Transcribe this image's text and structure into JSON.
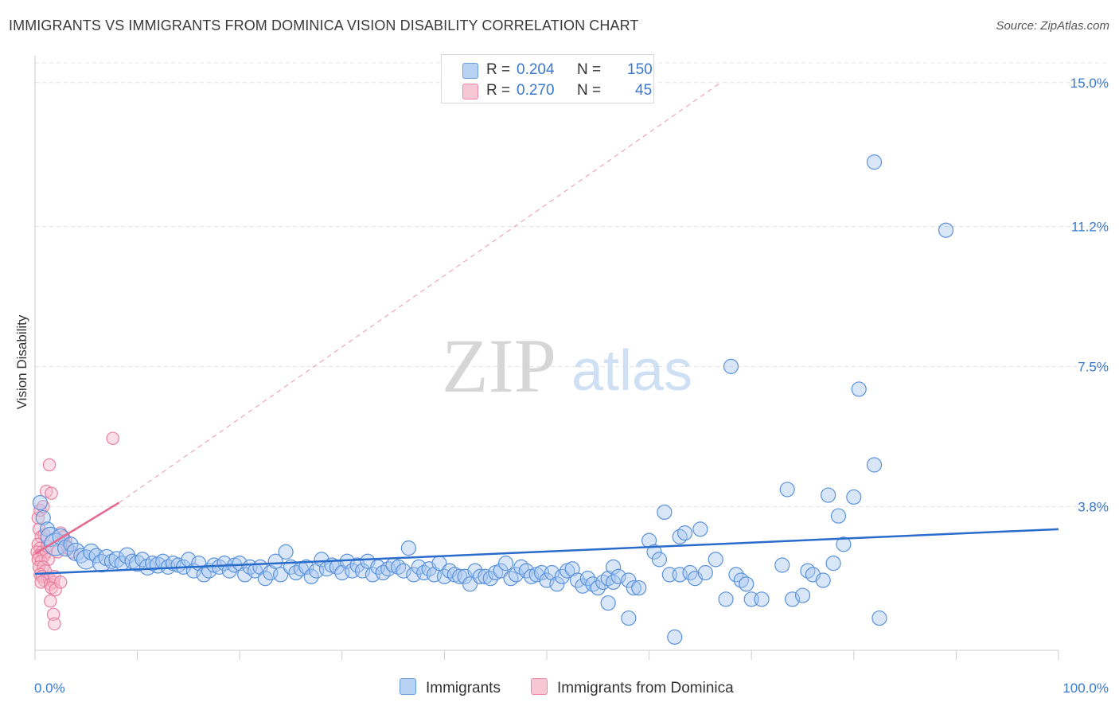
{
  "title": "IMMIGRANTS VS IMMIGRANTS FROM DOMINICA VISION DISABILITY CORRELATION CHART",
  "source": "Source: ZipAtlas.com",
  "watermark": {
    "zip": "ZIP",
    "atlas": "atlas"
  },
  "legend": {
    "r_label": "R =",
    "n_label": "N =",
    "rows": [
      {
        "name": "Immigrants",
        "r": "0.204",
        "n": "150",
        "fill": "#b7d2f3",
        "stroke": "#6a9fe0"
      },
      {
        "name": "Immigrants from Dominica",
        "r": "0.270",
        "n": "45",
        "fill": "#f8c7d5",
        "stroke": "#ea8aa8"
      }
    ]
  },
  "colors": {
    "blue_fill": "#a9c8ef",
    "blue_stroke": "#5a92dc",
    "blue_line": "#2a6ccc",
    "pink_fill": "#f6b9cc",
    "pink_stroke": "#e8809f",
    "pink_line": "#e46a8f",
    "grid": "#e3e3e3",
    "tick_text": "#3a78d0"
  },
  "chart_data": {
    "type": "scatter",
    "title": "IMMIGRANTS VS IMMIGRANTS FROM DOMINICA VISION DISABILITY CORRELATION CHART",
    "xlabel": "",
    "ylabel": "Vision Disability",
    "xlim": [
      0,
      100
    ],
    "ylim": [
      0,
      15.5
    ],
    "x_tick_labels": [
      "0.0%",
      "100.0%"
    ],
    "y_ticks": [
      3.8,
      7.5,
      11.2,
      15.0
    ],
    "y_tick_labels": [
      "3.8%",
      "7.5%",
      "11.2%",
      "15.0%"
    ],
    "grid": true,
    "series": [
      {
        "name": "Immigrants",
        "r": 0.204,
        "n": 150,
        "trend": {
          "x": [
            0,
            100
          ],
          "y": [
            2.02,
            3.2
          ],
          "style": "solid"
        },
        "points": [
          [
            0.5,
            3.9,
            9
          ],
          [
            0.8,
            3.5,
            9
          ],
          [
            1.2,
            3.2,
            9
          ],
          [
            1.5,
            3.0,
            12
          ],
          [
            2,
            2.8,
            14
          ],
          [
            2.5,
            3.0,
            10
          ],
          [
            3,
            2.7,
            10
          ],
          [
            3.5,
            2.8,
            9
          ],
          [
            4,
            2.6,
            11
          ],
          [
            4.5,
            2.5,
            9
          ],
          [
            5,
            2.4,
            12
          ],
          [
            5.5,
            2.6,
            10
          ],
          [
            6,
            2.5,
            9
          ],
          [
            6.5,
            2.3,
            11
          ],
          [
            7,
            2.45,
            10
          ],
          [
            7.5,
            2.35,
            9
          ],
          [
            8,
            2.4,
            10
          ],
          [
            8.5,
            2.3,
            9
          ],
          [
            9,
            2.5,
            10
          ],
          [
            9.5,
            2.35,
            9
          ],
          [
            10,
            2.3,
            10
          ],
          [
            10.5,
            2.4,
            9
          ],
          [
            11,
            2.2,
            10
          ],
          [
            11.5,
            2.3,
            9
          ],
          [
            12,
            2.25,
            10
          ],
          [
            12.5,
            2.35,
            9
          ],
          [
            13,
            2.2,
            9
          ],
          [
            13.5,
            2.3,
            9
          ],
          [
            14,
            2.25,
            9
          ],
          [
            14.5,
            2.2,
            9
          ],
          [
            15,
            2.4,
            9
          ],
          [
            15.5,
            2.1,
            9
          ],
          [
            16,
            2.3,
            9
          ],
          [
            16.5,
            2.0,
            9
          ],
          [
            17,
            2.1,
            9
          ],
          [
            17.5,
            2.25,
            9
          ],
          [
            18,
            2.2,
            9
          ],
          [
            18.5,
            2.3,
            9
          ],
          [
            19,
            2.1,
            9
          ],
          [
            19.5,
            2.25,
            9
          ],
          [
            20,
            2.3,
            9
          ],
          [
            20.5,
            2.0,
            9
          ],
          [
            21,
            2.2,
            9
          ],
          [
            21.5,
            2.1,
            9
          ],
          [
            22,
            2.2,
            9
          ],
          [
            22.5,
            1.9,
            9
          ],
          [
            23,
            2.05,
            9
          ],
          [
            23.5,
            2.35,
            9
          ],
          [
            24,
            2.0,
            9
          ],
          [
            24.5,
            2.6,
            9
          ],
          [
            25,
            2.2,
            9
          ],
          [
            25.5,
            2.05,
            9
          ],
          [
            26,
            2.15,
            9
          ],
          [
            26.5,
            2.2,
            9
          ],
          [
            27,
            1.95,
            9
          ],
          [
            27.5,
            2.1,
            9
          ],
          [
            28,
            2.4,
            9
          ],
          [
            28.5,
            2.15,
            9
          ],
          [
            29,
            2.25,
            9
          ],
          [
            29.5,
            2.2,
            9
          ],
          [
            30,
            2.05,
            9
          ],
          [
            30.5,
            2.35,
            9
          ],
          [
            31,
            2.1,
            9
          ],
          [
            31.5,
            2.25,
            9
          ],
          [
            32,
            2.1,
            9
          ],
          [
            32.5,
            2.35,
            9
          ],
          [
            33,
            2.0,
            9
          ],
          [
            33.5,
            2.2,
            9
          ],
          [
            34,
            2.05,
            9
          ],
          [
            34.5,
            2.15,
            9
          ],
          [
            35,
            2.25,
            9
          ],
          [
            35.5,
            2.2,
            9
          ],
          [
            36,
            2.1,
            9
          ],
          [
            36.5,
            2.7,
            9
          ],
          [
            37,
            2.0,
            9
          ],
          [
            37.5,
            2.2,
            9
          ],
          [
            38,
            2.05,
            9
          ],
          [
            38.5,
            2.15,
            9
          ],
          [
            39,
            2.0,
            9
          ],
          [
            39.5,
            2.3,
            9
          ],
          [
            40,
            1.95,
            9
          ],
          [
            40.5,
            2.1,
            9
          ],
          [
            41,
            2.0,
            9
          ],
          [
            41.5,
            1.95,
            9
          ],
          [
            42,
            1.95,
            9
          ],
          [
            42.5,
            1.75,
            9
          ],
          [
            43,
            2.1,
            9
          ],
          [
            43.5,
            1.95,
            9
          ],
          [
            44,
            1.95,
            9
          ],
          [
            44.5,
            1.9,
            9
          ],
          [
            45,
            2.05,
            9
          ],
          [
            45.5,
            2.1,
            9
          ],
          [
            46,
            2.3,
            9
          ],
          [
            46.5,
            1.9,
            9
          ],
          [
            47,
            2.0,
            9
          ],
          [
            47.5,
            2.2,
            9
          ],
          [
            48,
            2.1,
            9
          ],
          [
            48.5,
            1.95,
            9
          ],
          [
            49,
            2.0,
            9
          ],
          [
            49.5,
            2.05,
            9
          ],
          [
            50,
            1.85,
            9
          ],
          [
            50.5,
            2.05,
            9
          ],
          [
            51,
            1.75,
            9
          ],
          [
            51.5,
            1.95,
            9
          ],
          [
            52,
            2.1,
            9
          ],
          [
            52.5,
            2.15,
            9
          ],
          [
            53,
            1.85,
            9
          ],
          [
            53.5,
            1.7,
            9
          ],
          [
            54,
            1.9,
            9
          ],
          [
            54.5,
            1.75,
            9
          ],
          [
            55,
            1.65,
            9
          ],
          [
            55.5,
            1.8,
            9
          ],
          [
            56,
            1.9,
            9
          ],
          [
            56.5,
            1.8,
            9
          ],
          [
            56,
            1.25,
            9
          ],
          [
            56.5,
            2.2,
            9
          ],
          [
            57,
            1.95,
            9
          ],
          [
            58,
            1.85,
            9
          ],
          [
            58.5,
            1.65,
            9
          ],
          [
            59,
            1.65,
            9
          ],
          [
            58,
            0.85,
            9
          ],
          [
            60,
            2.9,
            9
          ],
          [
            60.5,
            2.6,
            9
          ],
          [
            61,
            2.4,
            9
          ],
          [
            61.5,
            3.65,
            9
          ],
          [
            63,
            3.0,
            9
          ],
          [
            63.5,
            3.1,
            9
          ],
          [
            62,
            2.0,
            9
          ],
          [
            62.5,
            0.35,
            9
          ],
          [
            63,
            2.0,
            9
          ],
          [
            64,
            2.05,
            9
          ],
          [
            64.5,
            1.9,
            9
          ],
          [
            65.5,
            2.05,
            9
          ],
          [
            65,
            3.2,
            9
          ],
          [
            66.5,
            2.4,
            9
          ],
          [
            67.5,
            1.35,
            9
          ],
          [
            68,
            7.5,
            9
          ],
          [
            68.5,
            2.0,
            9
          ],
          [
            69,
            1.85,
            9
          ],
          [
            69.5,
            1.75,
            9
          ],
          [
            70,
            1.35,
            9
          ],
          [
            71,
            1.35,
            9
          ],
          [
            73,
            2.25,
            9
          ],
          [
            73.5,
            4.25,
            9
          ],
          [
            74,
            1.35,
            9
          ],
          [
            75,
            1.45,
            9
          ],
          [
            75.5,
            2.1,
            9
          ],
          [
            76,
            2.0,
            9
          ],
          [
            77,
            1.85,
            9
          ],
          [
            77.5,
            4.1,
            9
          ],
          [
            78,
            2.3,
            9
          ],
          [
            78.5,
            3.55,
            9
          ],
          [
            79,
            2.8,
            9
          ],
          [
            80,
            4.05,
            9
          ],
          [
            80.5,
            6.9,
            9
          ],
          [
            82,
            4.9,
            9
          ],
          [
            82,
            12.9,
            9
          ],
          [
            82.5,
            0.85,
            9
          ],
          [
            89,
            11.1,
            9
          ]
        ]
      },
      {
        "name": "Immigrants from Dominica",
        "r": 0.27,
        "n": 45,
        "trend": {
          "x": [
            0,
            8.2
          ],
          "y": [
            2.55,
            3.9
          ],
          "style": "solid"
        },
        "trend_extended": {
          "x": [
            8.2,
            67
          ],
          "y": [
            3.9,
            15.0
          ],
          "style": "dashed"
        },
        "points": [
          [
            0.3,
            3.5,
            9
          ],
          [
            0.5,
            3.7,
            9
          ],
          [
            0.8,
            3.8,
            9
          ],
          [
            0.4,
            3.2,
            9
          ],
          [
            0.6,
            3.0,
            9
          ],
          [
            0.3,
            2.8,
            9
          ],
          [
            0.5,
            2.7,
            9
          ],
          [
            0.2,
            2.6,
            9
          ],
          [
            0.7,
            2.6,
            9
          ],
          [
            0.4,
            2.5,
            9
          ],
          [
            0.9,
            2.5,
            9
          ],
          [
            1.1,
            2.6,
            9
          ],
          [
            0.3,
            2.4,
            9
          ],
          [
            0.6,
            2.35,
            9
          ],
          [
            1.3,
            2.4,
            9
          ],
          [
            0.4,
            2.2,
            9
          ],
          [
            0.8,
            2.2,
            9
          ],
          [
            1.0,
            2.1,
            9
          ],
          [
            0.5,
            2.0,
            9
          ],
          [
            0.7,
            1.95,
            9
          ],
          [
            1.2,
            1.9,
            9
          ],
          [
            0.9,
            1.85,
            9
          ],
          [
            1.4,
            1.9,
            9
          ],
          [
            0.6,
            1.8,
            9
          ],
          [
            1.5,
            1.75,
            9
          ],
          [
            1.8,
            1.8,
            9
          ],
          [
            1.6,
            1.65,
            9
          ],
          [
            2.0,
            1.6,
            9
          ],
          [
            1.9,
            1.95,
            9
          ],
          [
            2.2,
            2.6,
            9
          ],
          [
            2.5,
            3.1,
            9
          ],
          [
            2.8,
            3.0,
            9
          ],
          [
            3.0,
            2.9,
            9
          ],
          [
            3.2,
            2.7,
            9
          ],
          [
            3.6,
            2.6,
            9
          ],
          [
            1.1,
            4.2,
            9
          ],
          [
            1.6,
            4.15,
            9
          ],
          [
            1.4,
            4.9,
            9
          ],
          [
            7.6,
            5.6,
            9
          ],
          [
            1.8,
            0.95,
            9
          ],
          [
            1.9,
            0.7,
            9
          ],
          [
            1.5,
            1.3,
            9
          ],
          [
            2.5,
            1.8,
            9
          ],
          [
            1.2,
            2.75,
            9
          ],
          [
            0.9,
            3.05,
            9
          ]
        ]
      }
    ]
  }
}
